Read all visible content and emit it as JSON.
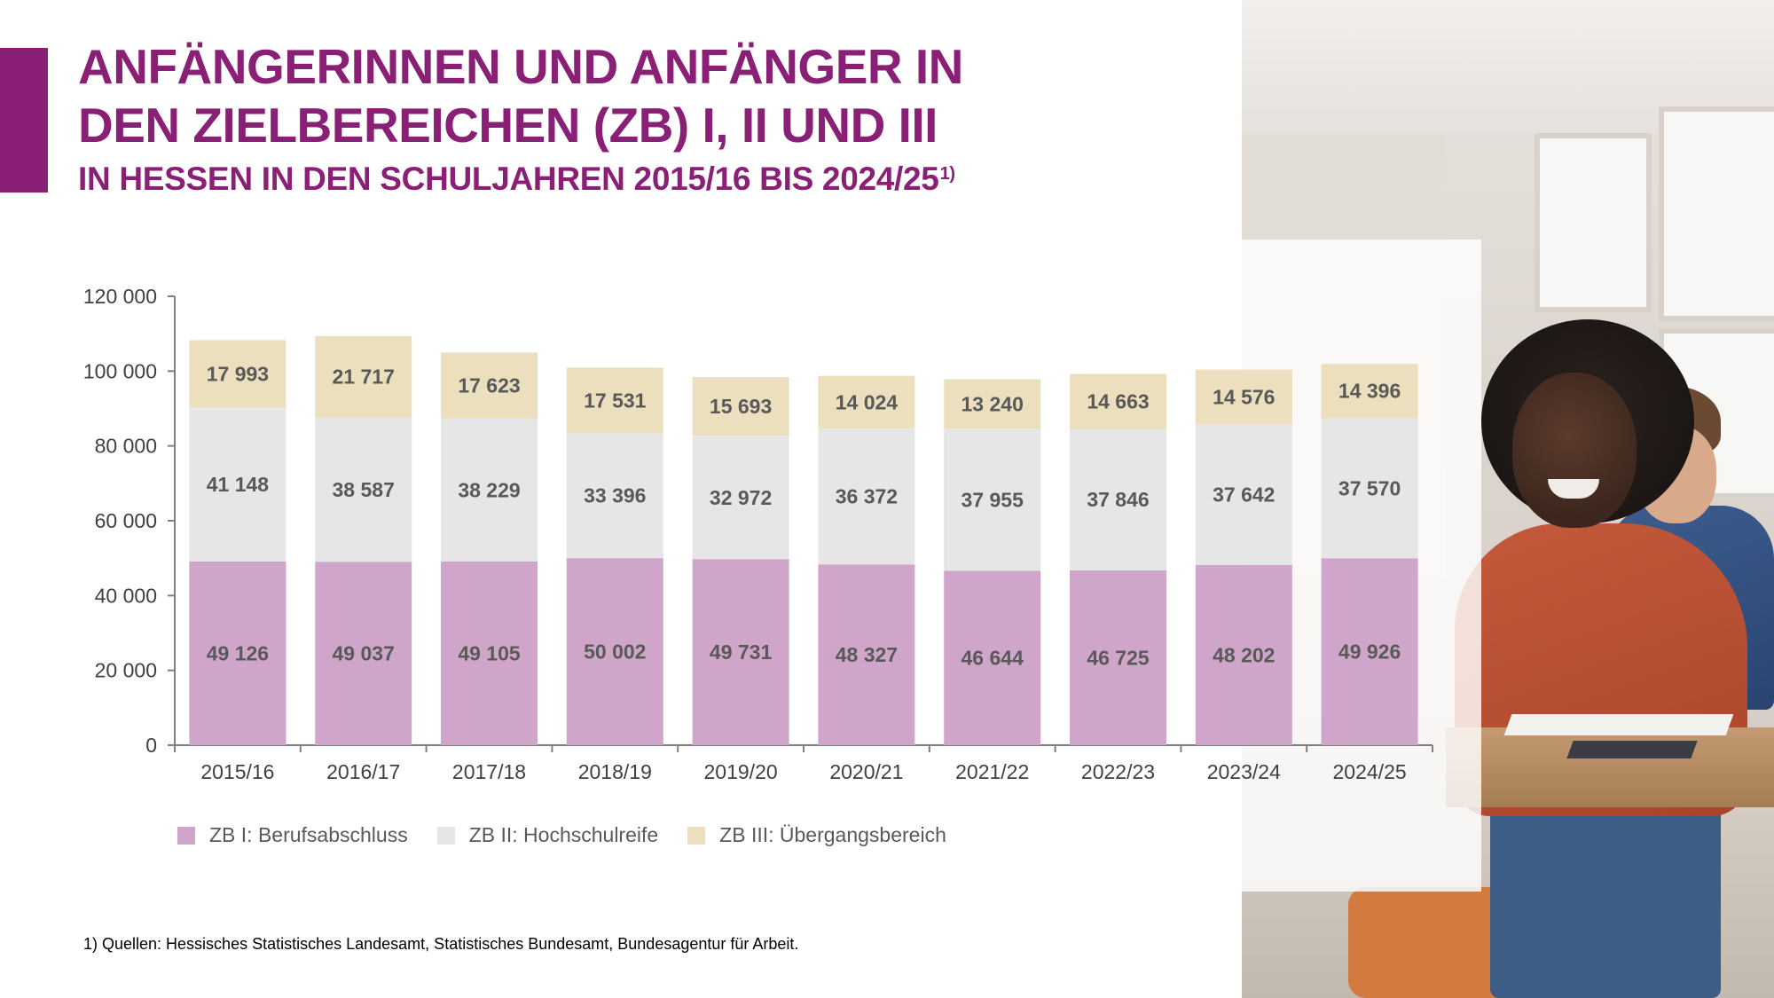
{
  "header": {
    "title_line1": "ANFÄNGERINNEN UND ANFÄNGER IN",
    "title_line2": "DEN ZIELBEREICHEN (ZB) I, II UND III",
    "subtitle": "IN HESSEN IN DEN SCHULJAHREN 2015/16 BIS 2024/25",
    "subtitle_footnote_mark": "1)"
  },
  "colors": {
    "brand": "#8a1f76",
    "zb1": "#cfa6ca",
    "zb2": "#e6e6e6",
    "zb3": "#ebdfbd"
  },
  "chart_data": {
    "type": "bar",
    "stacked": true,
    "categories": [
      "2015/16",
      "2016/17",
      "2017/18",
      "2018/19",
      "2019/20",
      "2020/21",
      "2021/22",
      "2022/23",
      "2023/24",
      "2024/25"
    ],
    "series": [
      {
        "name": "ZB I: Berufsabschluss",
        "values": [
          49126,
          49037,
          49105,
          50002,
          49731,
          48327,
          46644,
          46725,
          48202,
          49926
        ],
        "labels": [
          "49 126",
          "49 037",
          "49 105",
          "50 002",
          "49 731",
          "48 327",
          "46 644",
          "46 725",
          "48 202",
          "49 926"
        ]
      },
      {
        "name": "ZB II: Hochschulreife",
        "values": [
          41148,
          38587,
          38229,
          33396,
          32972,
          36372,
          37955,
          37846,
          37642,
          37570
        ],
        "labels": [
          "41 148",
          "38 587",
          "38 229",
          "33 396",
          "32 972",
          "36 372",
          "37 955",
          "37 846",
          "37 642",
          "37 570"
        ]
      },
      {
        "name": "ZB III: Übergangsbereich",
        "values": [
          17993,
          21717,
          17623,
          17531,
          15693,
          14024,
          13240,
          14663,
          14576,
          14396
        ],
        "labels": [
          "17 993",
          "21 717",
          "17 623",
          "17 531",
          "15 693",
          "14 024",
          "13 240",
          "14 663",
          "14 576",
          "14 396"
        ]
      }
    ],
    "ylim": [
      0,
      120000
    ],
    "yticks": [
      0,
      20000,
      40000,
      60000,
      80000,
      100000,
      120000
    ],
    "ytick_labels": [
      "0",
      "20 000",
      "40 000",
      "60 000",
      "80 000",
      "100 000",
      "120 000"
    ],
    "grid": false,
    "legend_position": "bottom"
  },
  "footnote": "1) Quellen: Hessisches Statistisches Landesamt, Statistisches Bundesamt, Bundesagentur für Arbeit."
}
